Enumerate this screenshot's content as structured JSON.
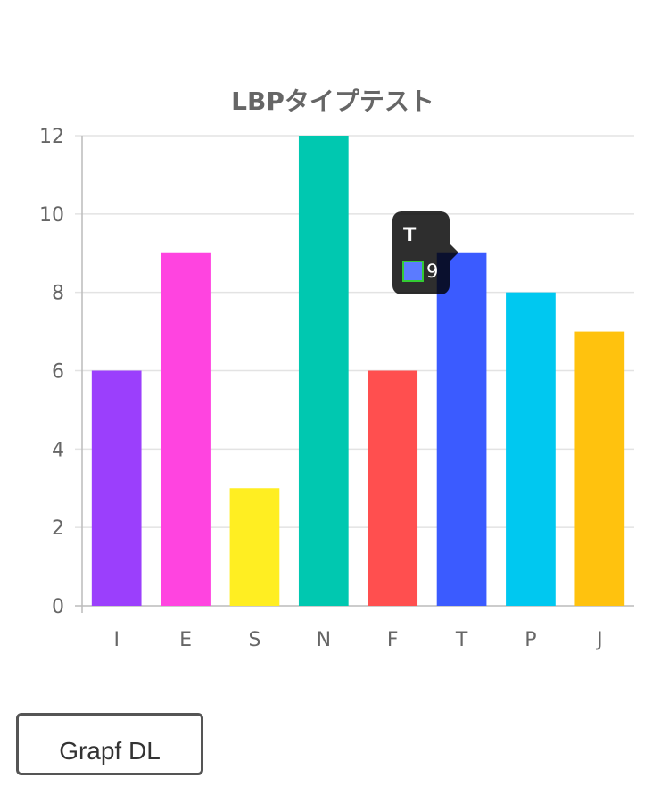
{
  "chart_data": {
    "type": "bar",
    "title": "LBPタイプテスト",
    "categories": [
      "I",
      "E",
      "S",
      "N",
      "F",
      "T",
      "P",
      "J"
    ],
    "values": [
      6,
      9,
      3,
      12,
      6,
      9,
      8,
      7
    ],
    "colors": [
      "#9b3ffc",
      "#ff44e0",
      "#ffee22",
      "#00c8b0",
      "#ff4f4f",
      "#3b5bff",
      "#00c8f0",
      "#ffc20e"
    ],
    "ylim": [
      0,
      12
    ],
    "yticks": [
      0,
      2,
      4,
      6,
      8,
      10,
      12
    ],
    "grid": true,
    "legend": "none"
  },
  "tooltip": {
    "title": "T",
    "value": "9",
    "swatch_color": "#5b7bff",
    "swatch_border": "#33cc33"
  },
  "download_button": {
    "label": "Grapf DL"
  }
}
